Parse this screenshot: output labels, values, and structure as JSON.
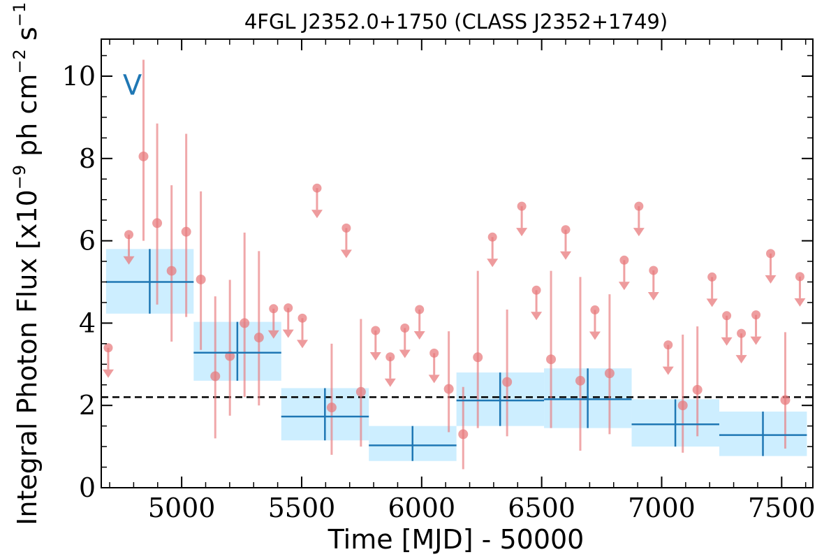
{
  "chart_data": {
    "type": "scatter",
    "title": "4FGL J2352.0+1750 (CLASS J2352+1749)",
    "xlabel": "Time [MJD] - 50000",
    "ylabel": "Integral Photon Flux [x10^-9 ph cm^-2 s^-1]",
    "xlim": [
      4665,
      7630
    ],
    "ylim": [
      0,
      10.9
    ],
    "x_ticks": [
      5000,
      5500,
      6000,
      6500,
      7000,
      7500
    ],
    "y_ticks": [
      0,
      2,
      4,
      6,
      8,
      10
    ],
    "annotation": "V",
    "mean_flux": 2.2,
    "colors": {
      "points": "#e8797c",
      "bins": "#1f77b4",
      "bin_band": "#cdeeff",
      "mean": "#000000"
    },
    "series": [
      {
        "points": [
          {
            "x": 4841,
            "y": 8.05,
            "ylo": 6.0,
            "yhi": 10.4
          },
          {
            "x": 4898,
            "y": 6.43,
            "ylo": 4.45,
            "yhi": 8.85
          },
          {
            "x": 4958,
            "y": 5.27,
            "ylo": 3.55,
            "yhi": 7.35
          },
          {
            "x": 5019,
            "y": 6.22,
            "ylo": 4.15,
            "yhi": 8.6
          },
          {
            "x": 5080,
            "y": 5.06,
            "ylo": 3.35,
            "yhi": 7.2
          },
          {
            "x": 5140,
            "y": 2.71,
            "ylo": 1.2,
            "yhi": 4.65
          },
          {
            "x": 5201,
            "y": 3.2,
            "ylo": 1.75,
            "yhi": 5.05
          },
          {
            "x": 5262,
            "y": 4.0,
            "ylo": 2.2,
            "yhi": 6.2
          },
          {
            "x": 5322,
            "y": 3.65,
            "ylo": 2.0,
            "yhi": 5.75
          },
          {
            "x": 5625,
            "y": 1.95,
            "ylo": 0.8,
            "yhi": 3.5
          },
          {
            "x": 5747,
            "y": 2.33,
            "ylo": 1.0,
            "yhi": 4.1
          },
          {
            "x": 6113,
            "y": 2.4,
            "ylo": 1.35,
            "yhi": 3.8
          },
          {
            "x": 6173,
            "y": 1.3,
            "ylo": 0.45,
            "yhi": 2.45
          },
          {
            "x": 6234,
            "y": 3.17,
            "ylo": 1.45,
            "yhi": 5.27
          },
          {
            "x": 6356,
            "y": 2.57,
            "ylo": 1.25,
            "yhi": 4.33
          },
          {
            "x": 6539,
            "y": 3.12,
            "ylo": 1.45,
            "yhi": 5.27
          },
          {
            "x": 6661,
            "y": 2.6,
            "ylo": 0.9,
            "yhi": 5.12
          },
          {
            "x": 6783,
            "y": 2.78,
            "ylo": 1.3,
            "yhi": 4.7
          },
          {
            "x": 7088,
            "y": 2.0,
            "ylo": 0.85,
            "yhi": 3.72
          },
          {
            "x": 7149,
            "y": 2.38,
            "ylo": 1.25,
            "yhi": 3.92
          },
          {
            "x": 7515,
            "y": 2.13,
            "ylo": 0.95,
            "yhi": 3.78
          }
        ],
        "upper_limits": [
          {
            "x": 4694,
            "y": 3.4
          },
          {
            "x": 4780,
            "y": 6.15
          },
          {
            "x": 5383,
            "y": 4.35
          },
          {
            "x": 5444,
            "y": 4.37
          },
          {
            "x": 5503,
            "y": 4.12
          },
          {
            "x": 5564,
            "y": 7.28
          },
          {
            "x": 5686,
            "y": 6.31
          },
          {
            "x": 5808,
            "y": 3.82
          },
          {
            "x": 5869,
            "y": 3.18
          },
          {
            "x": 5930,
            "y": 3.88
          },
          {
            "x": 5991,
            "y": 4.33
          },
          {
            "x": 6052,
            "y": 3.27
          },
          {
            "x": 6295,
            "y": 6.09
          },
          {
            "x": 6417,
            "y": 6.84
          },
          {
            "x": 6478,
            "y": 4.8
          },
          {
            "x": 6600,
            "y": 6.27
          },
          {
            "x": 6722,
            "y": 4.32
          },
          {
            "x": 6844,
            "y": 5.53
          },
          {
            "x": 6905,
            "y": 6.84
          },
          {
            "x": 6966,
            "y": 5.28
          },
          {
            "x": 7027,
            "y": 3.47
          },
          {
            "x": 7210,
            "y": 5.12
          },
          {
            "x": 7271,
            "y": 4.18
          },
          {
            "x": 7332,
            "y": 3.75
          },
          {
            "x": 7393,
            "y": 4.2
          },
          {
            "x": 7454,
            "y": 5.69
          },
          {
            "x": 7576,
            "y": 5.13
          }
        ]
      },
      {
        "bins": [
          {
            "x0": 4685,
            "x1": 5050,
            "xc": 4867,
            "y": 5.0,
            "ylo": 4.23,
            "yhi": 5.8
          },
          {
            "x0": 5050,
            "x1": 5415,
            "xc": 5232,
            "y": 3.28,
            "ylo": 2.6,
            "yhi": 4.03
          },
          {
            "x0": 5415,
            "x1": 5780,
            "xc": 5597,
            "y": 1.73,
            "ylo": 1.15,
            "yhi": 2.42
          },
          {
            "x0": 5780,
            "x1": 6145,
            "xc": 5962,
            "y": 1.03,
            "ylo": 0.65,
            "yhi": 1.5
          },
          {
            "x0": 6145,
            "x1": 6510,
            "xc": 6327,
            "y": 2.12,
            "ylo": 1.5,
            "yhi": 2.8
          },
          {
            "x0": 6510,
            "x1": 6875,
            "xc": 6692,
            "y": 2.15,
            "ylo": 1.45,
            "yhi": 2.9
          },
          {
            "x0": 6875,
            "x1": 7240,
            "xc": 7057,
            "y": 1.54,
            "ylo": 1.0,
            "yhi": 2.15
          },
          {
            "x0": 7240,
            "x1": 7605,
            "xc": 7422,
            "y": 1.28,
            "ylo": 0.77,
            "yhi": 1.85
          }
        ]
      }
    ]
  }
}
